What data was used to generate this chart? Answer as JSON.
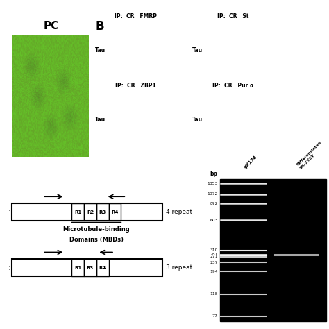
{
  "bg_color": "#ffffff",
  "panel_A_label": "PC",
  "panel_B_label": "B",
  "gel_bp_labels": [
    "1353",
    "1072",
    "872",
    "603",
    "310",
    "281",
    "271",
    "237",
    "194",
    "118",
    "72"
  ],
  "gel_bp_positions": [
    1353,
    1072,
    872,
    603,
    310,
    281,
    271,
    237,
    194,
    118,
    72
  ],
  "phi_label": "φX174",
  "diff_label": "Differentiated\nSH-SY5Y",
  "repeat_4_label": "4 repeat",
  "repeat_3_label": "3 repeat",
  "mbd_label": "Microtubule-binding\nDomains (MBDs)",
  "r4_boxes": [
    "R1",
    "R2",
    "R3",
    "R4"
  ],
  "r3_boxes": [
    "R1",
    "R3",
    "R4"
  ],
  "green_rgb": [
    100,
    180,
    40
  ],
  "ip_panels": [
    {
      "ip": "IP:  CR   FMRP",
      "row": "Tau"
    },
    {
      "ip": "IP:  CR   St",
      "row": "Tau"
    },
    {
      "ip": "IP:  CR   ZBP1",
      "row": "Tau"
    },
    {
      "ip": "IP:  CR   Pur α",
      "row": "Tau"
    }
  ]
}
